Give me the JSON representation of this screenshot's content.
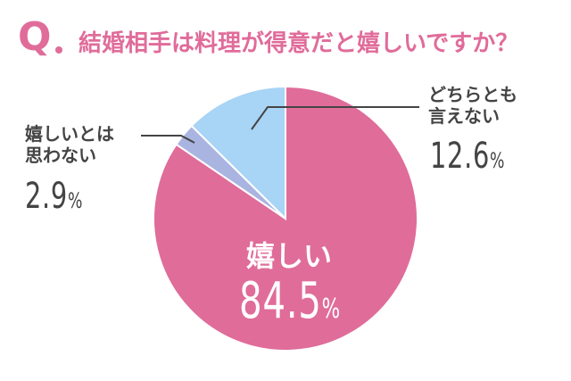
{
  "title_prefix": "Q",
  "title": "結婚相手は料理が得意だと嬉しいですか？",
  "chart_data": {
    "type": "pie",
    "start_angle_deg": 0,
    "direction": "clockwise",
    "slices": [
      {
        "label_line1": "嬉しい",
        "label_line2": "",
        "value": 84.5,
        "color": "#e06c9a"
      },
      {
        "label_line1": "嬉しいとは",
        "label_line2": "思わない",
        "value": 2.9,
        "color": "#aab4e0"
      },
      {
        "label_line1": "どちらとも",
        "label_line2": "言えない",
        "value": 12.6,
        "color": "#a8d4f5"
      }
    ],
    "unit": "%"
  }
}
